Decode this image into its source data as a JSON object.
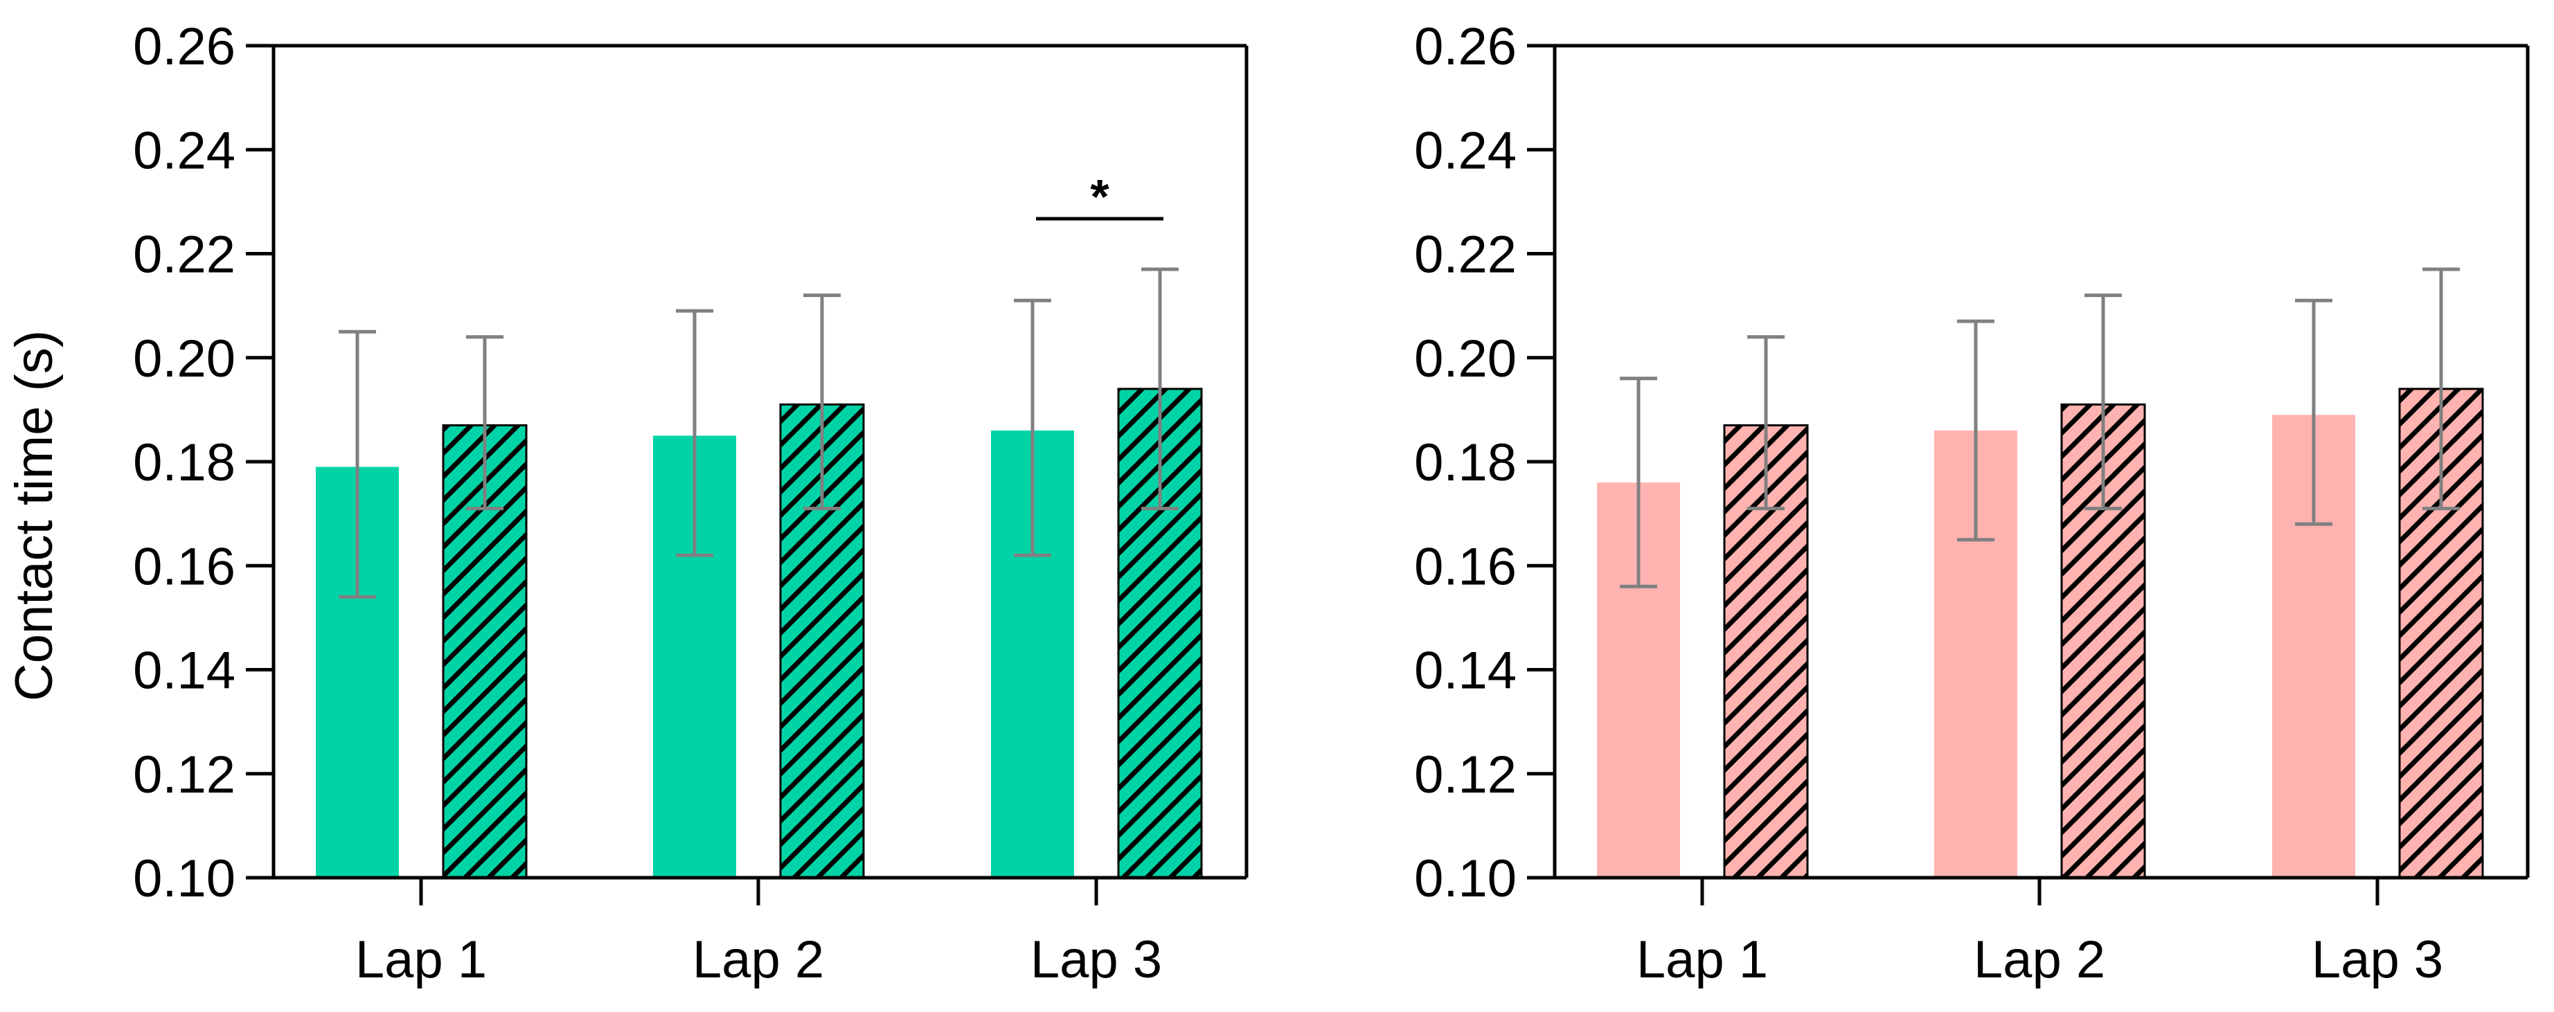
{
  "chart_data": [
    {
      "type": "bar",
      "panel": "left",
      "ylabel": "Contact time (s)",
      "ylim": [
        0.1,
        0.26
      ],
      "yticks": [
        "0.10",
        "0.12",
        "0.14",
        "0.16",
        "0.18",
        "0.20",
        "0.22",
        "0.24",
        "0.26"
      ],
      "categories": [
        "Lap 1",
        "Lap 2",
        "Lap 3"
      ],
      "colors": {
        "fill": "#00d4a6",
        "hatch": "#000000",
        "error": "#808080"
      },
      "series": [
        {
          "name": "solid",
          "pattern": "solid",
          "values": [
            0.179,
            0.185,
            0.186
          ],
          "err_low": [
            0.154,
            0.162,
            0.162
          ],
          "err_high": [
            0.205,
            0.209,
            0.211
          ]
        },
        {
          "name": "hatched",
          "pattern": "hatch",
          "values": [
            0.187,
            0.191,
            0.194
          ],
          "err_low": [
            0.171,
            0.171,
            0.171
          ],
          "err_high": [
            0.204,
            0.212,
            0.217
          ]
        }
      ],
      "annotations": [
        {
          "category": "Lap 3",
          "text": "*"
        }
      ]
    },
    {
      "type": "bar",
      "panel": "right",
      "ylabel": "",
      "ylim": [
        0.1,
        0.26
      ],
      "yticks": [
        "0.10",
        "0.12",
        "0.14",
        "0.16",
        "0.18",
        "0.20",
        "0.22",
        "0.24",
        "0.26"
      ],
      "categories": [
        "Lap 1",
        "Lap 2",
        "Lap 3"
      ],
      "colors": {
        "fill": "#ffb3b0",
        "hatch": "#000000",
        "error": "#808080"
      },
      "series": [
        {
          "name": "solid",
          "pattern": "solid",
          "values": [
            0.176,
            0.186,
            0.189
          ],
          "err_low": [
            0.156,
            0.165,
            0.168
          ],
          "err_high": [
            0.196,
            0.207,
            0.211
          ]
        },
        {
          "name": "hatched",
          "pattern": "hatch",
          "values": [
            0.187,
            0.191,
            0.194
          ],
          "err_low": [
            0.171,
            0.171,
            0.171
          ],
          "err_high": [
            0.204,
            0.212,
            0.217
          ]
        }
      ],
      "annotations": []
    }
  ]
}
